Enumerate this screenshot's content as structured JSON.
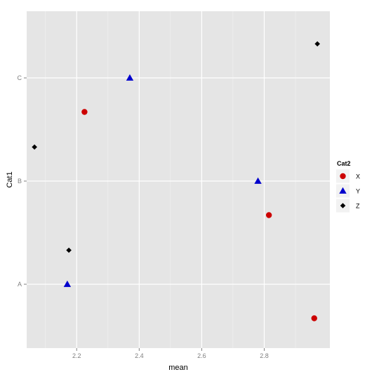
{
  "chart_data": {
    "type": "scatter",
    "xlabel": "mean",
    "ylabel": "Cat1",
    "x_ticks": [
      2.2,
      2.4,
      2.6,
      2.8
    ],
    "xlim": [
      2.04,
      3.01
    ],
    "y_categories": [
      "A",
      "B",
      "C"
    ],
    "y_offsets": [
      -0.33,
      0,
      0.33
    ],
    "legend": {
      "title": "Cat2",
      "position": "right",
      "entries": [
        {
          "name": "X",
          "color": "#cc0000",
          "shape": "circle"
        },
        {
          "name": "Y",
          "color": "#0000cc",
          "shape": "triangle"
        },
        {
          "name": "Z",
          "color": "#000000",
          "shape": "diamond"
        }
      ]
    },
    "points": [
      {
        "cat1": "A",
        "cat2": "X",
        "x": 2.96
      },
      {
        "cat1": "A",
        "cat2": "Y",
        "x": 2.17
      },
      {
        "cat1": "A",
        "cat2": "Z",
        "x": 2.175
      },
      {
        "cat1": "B",
        "cat2": "X",
        "x": 2.815
      },
      {
        "cat1": "B",
        "cat2": "Y",
        "x": 2.78
      },
      {
        "cat1": "B",
        "cat2": "Z",
        "x": 2.065
      },
      {
        "cat1": "C",
        "cat2": "X",
        "x": 2.225
      },
      {
        "cat1": "C",
        "cat2": "Y",
        "x": 2.37
      },
      {
        "cat1": "C",
        "cat2": "Z",
        "x": 2.97
      }
    ],
    "grid": true,
    "background": "#e5e5e5",
    "grid_color": "#ffffff"
  }
}
